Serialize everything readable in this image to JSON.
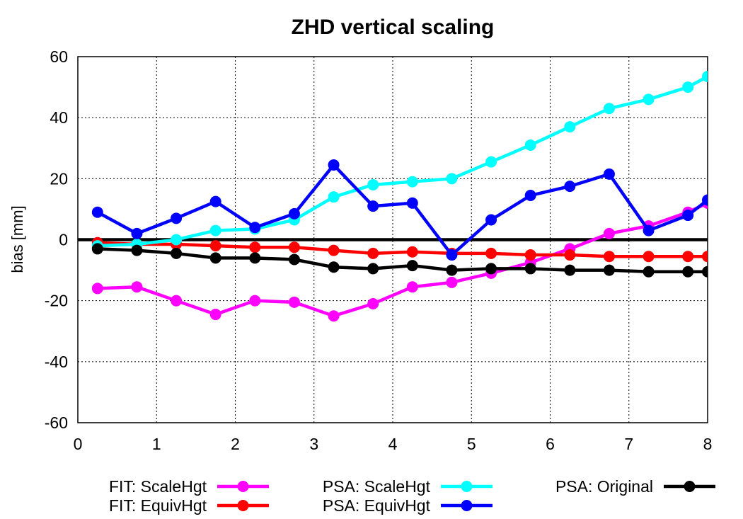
{
  "chart_data": {
    "type": "line",
    "title": "ZHD vertical scaling",
    "xlabel": "",
    "ylabel": "bias [mm]",
    "xlim": [
      0,
      8
    ],
    "ylim": [
      -60,
      60
    ],
    "xticks": [
      "0",
      "1",
      "2",
      "3",
      "4",
      "5",
      "6",
      "7",
      "8"
    ],
    "yticks": [
      "-60",
      "-40",
      "-20",
      "0",
      "20",
      "40",
      "60"
    ],
    "grid": true,
    "legend_position": "bottom",
    "reference_line_y": 0,
    "series": [
      {
        "name": "FIT: ScaleHgt",
        "color": "#ff00ff",
        "x": [
          0.25,
          0.75,
          1.25,
          1.75,
          2.25,
          2.75,
          3.25,
          3.75,
          4.25,
          4.75,
          5.25,
          5.75,
          6.25,
          6.75,
          7.25,
          7.75,
          8.0
        ],
        "y": [
          -16,
          -15.5,
          -20,
          -24.5,
          -20,
          -20.5,
          -25,
          -21,
          -15.5,
          -14,
          -11,
          -7.5,
          -3,
          2,
          4.5,
          9,
          12
        ]
      },
      {
        "name": "FIT: EquivHgt",
        "color": "#ff0000",
        "x": [
          0.25,
          0.75,
          1.25,
          1.75,
          2.25,
          2.75,
          3.25,
          3.75,
          4.25,
          4.75,
          5.25,
          5.75,
          6.25,
          6.75,
          7.25,
          7.75,
          8.0
        ],
        "y": [
          -1,
          -1.5,
          -1.5,
          -2,
          -2.5,
          -2.5,
          -3.5,
          -4.5,
          -4,
          -4.5,
          -4.5,
          -5,
          -5,
          -5.5,
          -5.5,
          -5.5,
          -5.5
        ]
      },
      {
        "name": "PSA: ScaleHgt",
        "color": "#00ffff",
        "x": [
          0.25,
          0.75,
          1.25,
          1.75,
          2.25,
          2.75,
          3.25,
          3.75,
          4.25,
          4.75,
          5.25,
          5.75,
          6.25,
          6.75,
          7.25,
          7.75,
          8.0
        ],
        "y": [
          -2,
          -1.5,
          0,
          3,
          3.5,
          6.5,
          14,
          18,
          19,
          20,
          25.5,
          31,
          37,
          43,
          46,
          50,
          53.5
        ]
      },
      {
        "name": "PSA: EquivHgt",
        "color": "#0000ff",
        "x": [
          0.25,
          0.75,
          1.25,
          1.75,
          2.25,
          2.75,
          3.25,
          3.75,
          4.25,
          4.75,
          5.25,
          5.75,
          6.25,
          6.75,
          7.25,
          7.75,
          8.0
        ],
        "y": [
          9,
          2,
          7,
          12.5,
          4,
          8.5,
          24.5,
          11,
          12,
          -5,
          6.5,
          14.5,
          17.5,
          21.5,
          3,
          8,
          13
        ]
      },
      {
        "name": "PSA: Original",
        "color": "#000000",
        "x": [
          0.25,
          0.75,
          1.25,
          1.75,
          2.25,
          2.75,
          3.25,
          3.75,
          4.25,
          4.75,
          5.25,
          5.75,
          6.25,
          6.75,
          7.25,
          7.75,
          8.0
        ],
        "y": [
          -3,
          -3.5,
          -4.5,
          -6,
          -6,
          -6.5,
          -9,
          -9.5,
          -8.5,
          -10,
          -9.5,
          -9.5,
          -10,
          -10,
          -10.5,
          -10.5,
          -10.5
        ]
      }
    ]
  }
}
